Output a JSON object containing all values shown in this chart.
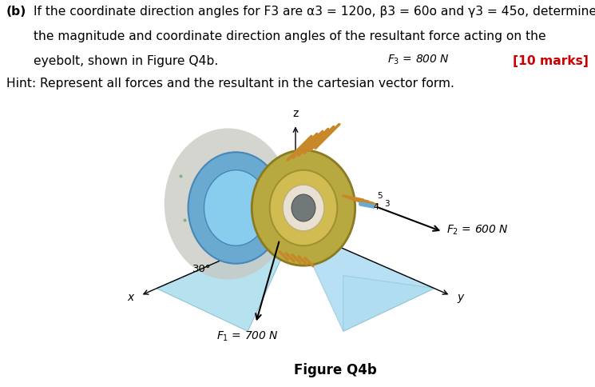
{
  "title_bold": "(b)",
  "line1": "If the coordinate direction angles for F3 are α3 = 120o, β3 = 60o and γ3 = 45o, determine",
  "line2": "the magnitude and coordinate direction angles of the resultant force acting on the",
  "line3": "eyebolt, shown in Figure Q4b.",
  "marks": "[10 marks]",
  "hint": "Hint: Represent all forces and the resultant in the cartesian vector form.",
  "figure_label": "Figure Q4b",
  "F1_label": "$F_1$ = 700 N",
  "F2_label": "$F_2$ = 600 N",
  "F3_label": "$F_3$ = 800 N",
  "angle_label": "30°",
  "axis_x": "x",
  "axis_y": "y",
  "axis_z": "z",
  "bg_color": "#ffffff",
  "text_color": "#000000",
  "red_color": "#cc0000",
  "body_fontsize": 11.2,
  "figure_caption_fontsize": 12,
  "ring_outer_color": "#b8aa50",
  "ring_inner_color": "#c8b850",
  "ring_dark_color": "#5a5200",
  "bolt_blue": "#6baad0",
  "bolt_blue_dark": "#4488bb",
  "rope_color": "#c8882a",
  "shadow_color": "#c8c8c0",
  "shadow_dots": "#6aaa7a",
  "plane_blue": "#aaddee",
  "plane_blue2": "#88ccee"
}
